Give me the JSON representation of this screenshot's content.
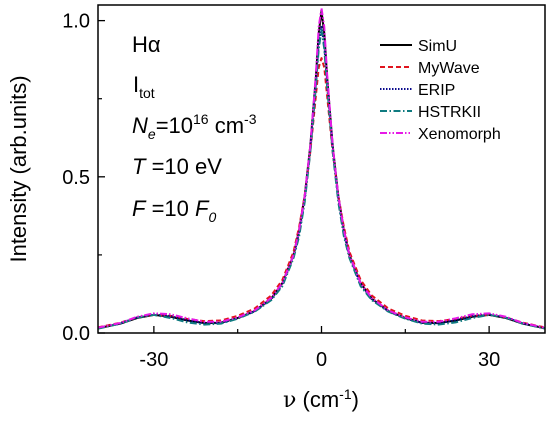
{
  "chart_data": {
    "type": "line",
    "xlabel_symbol": "ν",
    "xlabel_unit": " (cm",
    "xlabel_unit_sup": "-1",
    "xlabel_close": ")",
    "ylabel": "Intensity (arb.units)",
    "xlim": [
      -40,
      40
    ],
    "ylim": [
      0,
      1.05
    ],
    "xticks": [
      -30,
      0,
      30
    ],
    "xtick_labels": [
      "-30",
      "0",
      "30"
    ],
    "yticks": [
      0.0,
      0.5,
      1.0
    ],
    "ytick_labels": [
      "0.0",
      "0.5",
      "1.0"
    ],
    "grid": false,
    "legend_position": "top-right",
    "annotations": {
      "line_name": "Hα",
      "i_main": "I",
      "i_sub": "tot",
      "ne_sym": "N",
      "ne_sub": "e",
      "ne_val": "=10",
      "ne_exp": "16",
      "ne_unit": " cm",
      "ne_unit_exp": "-3",
      "t_sym": "T",
      "t_val": " =10 eV",
      "f_sym": "F",
      "f_val": " =10 ",
      "f0_sym": "F",
      "f0_sub": "0"
    },
    "series": [
      {
        "name": "SimU",
        "color": "#000000",
        "dash": "solid",
        "x": [
          -40,
          -36,
          -33,
          -30,
          -27,
          -24,
          -21,
          -18,
          -15,
          -12,
          -9,
          -7,
          -5,
          -4,
          -3,
          -2,
          -1,
          -0.5,
          0,
          0.5,
          1,
          2,
          3,
          4,
          5,
          7,
          9,
          12,
          15,
          18,
          21,
          24,
          27,
          30,
          33,
          36,
          40
        ],
        "y": [
          0.015,
          0.03,
          0.048,
          0.058,
          0.052,
          0.04,
          0.032,
          0.033,
          0.048,
          0.07,
          0.11,
          0.16,
          0.25,
          0.33,
          0.44,
          0.6,
          0.82,
          0.96,
          1.03,
          0.96,
          0.82,
          0.6,
          0.44,
          0.33,
          0.25,
          0.16,
          0.11,
          0.07,
          0.048,
          0.033,
          0.032,
          0.04,
          0.052,
          0.058,
          0.048,
          0.03,
          0.015
        ]
      },
      {
        "name": "MyWave",
        "color": "#e0141e",
        "dash": "5,3",
        "x": [
          -40,
          -36,
          -33,
          -30,
          -27,
          -24,
          -21,
          -18,
          -15,
          -12,
          -9,
          -7,
          -5,
          -4,
          -3,
          -2,
          -1,
          -0.5,
          0,
          0.5,
          1,
          2,
          3,
          4,
          5,
          7,
          9,
          12,
          15,
          18,
          21,
          24,
          27,
          30,
          33,
          36,
          40
        ],
        "y": [
          0.018,
          0.033,
          0.05,
          0.058,
          0.055,
          0.045,
          0.038,
          0.04,
          0.055,
          0.078,
          0.12,
          0.17,
          0.26,
          0.34,
          0.44,
          0.58,
          0.76,
          0.85,
          0.88,
          0.85,
          0.76,
          0.58,
          0.44,
          0.34,
          0.26,
          0.17,
          0.12,
          0.078,
          0.055,
          0.04,
          0.038,
          0.045,
          0.055,
          0.058,
          0.05,
          0.033,
          0.018
        ]
      },
      {
        "name": "ERIP",
        "color": "#0a0a8c",
        "dash": "1.5,1.5",
        "x": [
          -40,
          -36,
          -33,
          -30,
          -27,
          -24,
          -21,
          -18,
          -15,
          -12,
          -9,
          -7,
          -5,
          -4,
          -3,
          -2,
          -1,
          -0.5,
          0,
          0.5,
          1,
          2,
          3,
          4,
          5,
          7,
          9,
          12,
          15,
          18,
          21,
          24,
          27,
          30,
          33,
          36,
          40
        ],
        "y": [
          0.016,
          0.031,
          0.05,
          0.06,
          0.054,
          0.041,
          0.031,
          0.032,
          0.047,
          0.069,
          0.108,
          0.155,
          0.245,
          0.32,
          0.43,
          0.59,
          0.8,
          0.92,
          0.98,
          0.92,
          0.8,
          0.59,
          0.43,
          0.32,
          0.245,
          0.155,
          0.108,
          0.069,
          0.047,
          0.032,
          0.031,
          0.041,
          0.054,
          0.06,
          0.05,
          0.031,
          0.016
        ]
      },
      {
        "name": "HSTRKII",
        "color": "#0f7b80",
        "dash": "7,2.5,1.5,2.5",
        "x": [
          -40,
          -36,
          -33,
          -30,
          -27,
          -24,
          -21,
          -18,
          -15,
          -12,
          -9,
          -7,
          -5,
          -4,
          -3,
          -2,
          -1,
          -0.5,
          0,
          0.5,
          1,
          2,
          3,
          4,
          5,
          7,
          9,
          12,
          15,
          18,
          21,
          24,
          27,
          30,
          33,
          36,
          40
        ],
        "y": [
          0.014,
          0.03,
          0.049,
          0.058,
          0.048,
          0.034,
          0.027,
          0.03,
          0.046,
          0.068,
          0.105,
          0.15,
          0.24,
          0.31,
          0.42,
          0.58,
          0.79,
          0.91,
          0.97,
          0.91,
          0.79,
          0.58,
          0.42,
          0.31,
          0.24,
          0.15,
          0.105,
          0.068,
          0.046,
          0.03,
          0.027,
          0.034,
          0.048,
          0.058,
          0.049,
          0.03,
          0.014
        ]
      },
      {
        "name": "Xenomorph",
        "color": "#e619e6",
        "dash": "7,2,1.5,2,1.5,2",
        "x": [
          -40,
          -36,
          -33,
          -30,
          -27,
          -24,
          -21,
          -18,
          -15,
          -12,
          -9,
          -7,
          -5,
          -4,
          -3,
          -2,
          -1,
          -0.5,
          0,
          0.5,
          1,
          2,
          3,
          4,
          5,
          7,
          9,
          12,
          15,
          18,
          21,
          24,
          27,
          30,
          33,
          36,
          40
        ],
        "y": [
          0.017,
          0.032,
          0.052,
          0.063,
          0.06,
          0.047,
          0.036,
          0.036,
          0.05,
          0.072,
          0.112,
          0.16,
          0.25,
          0.33,
          0.44,
          0.6,
          0.83,
          0.98,
          1.04,
          0.98,
          0.83,
          0.6,
          0.44,
          0.33,
          0.25,
          0.16,
          0.112,
          0.072,
          0.05,
          0.036,
          0.036,
          0.047,
          0.06,
          0.063,
          0.052,
          0.032,
          0.017
        ]
      }
    ]
  }
}
